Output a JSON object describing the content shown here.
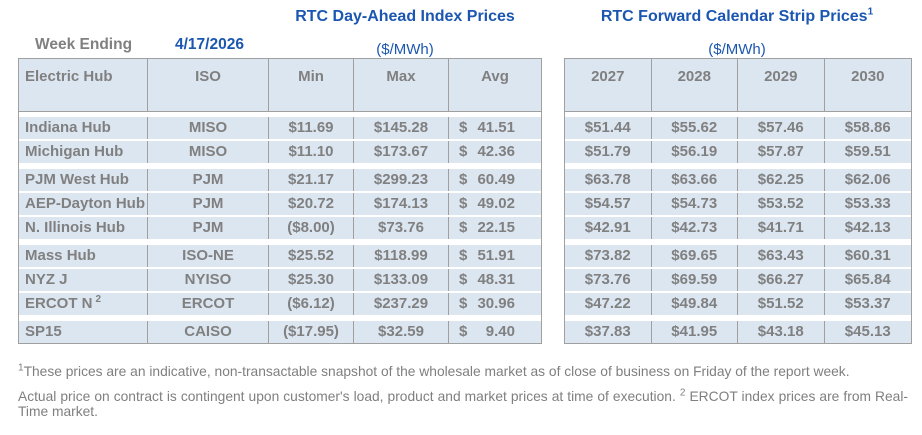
{
  "header": {
    "week_ending_label": "Week Ending",
    "week_ending_date": "4/17/2026",
    "left_title": "RTC Day-Ahead Index Prices",
    "right_title": "RTC Forward Calendar Strip Prices",
    "right_title_superscript": "1",
    "unit_label": "($/MWh)"
  },
  "colors": {
    "title_blue": "#1b57b1",
    "cell_background": "#dce6f1",
    "table_text_gray": "#808080",
    "border_gray": "#a0a0a0"
  },
  "day_ahead_table": {
    "columns": [
      "Electric Hub",
      "ISO",
      "Min",
      "Max",
      "Avg"
    ],
    "rows": [
      {
        "hub": "Indiana Hub",
        "hub_sup": "",
        "iso": "MISO",
        "min": "$11.69",
        "max": "$145.28",
        "avg_currency": "$",
        "avg": "41.51",
        "group_start": false
      },
      {
        "hub": "Michigan Hub",
        "hub_sup": "",
        "iso": "MISO",
        "min": "$11.10",
        "max": "$173.67",
        "avg_currency": "$",
        "avg": "42.36",
        "group_start": false
      },
      {
        "hub": "PJM West Hub",
        "hub_sup": "",
        "iso": "PJM",
        "min": "$21.17",
        "max": "$299.23",
        "avg_currency": "$",
        "avg": "60.49",
        "group_start": true
      },
      {
        "hub": "AEP-Dayton Hub",
        "hub_sup": "",
        "iso": "PJM",
        "min": "$20.72",
        "max": "$174.13",
        "avg_currency": "$",
        "avg": "49.02",
        "group_start": false
      },
      {
        "hub": "N. Illinois Hub",
        "hub_sup": "",
        "iso": "PJM",
        "min": "($8.00)",
        "max": "$73.76",
        "avg_currency": "$",
        "avg": "22.15",
        "group_start": false
      },
      {
        "hub": "Mass Hub",
        "hub_sup": "",
        "iso": "ISO-NE",
        "min": "$25.52",
        "max": "$118.99",
        "avg_currency": "$",
        "avg": "51.91",
        "group_start": true
      },
      {
        "hub": "NYZ J",
        "hub_sup": "",
        "iso": "NYISO",
        "min": "$25.30",
        "max": "$133.09",
        "avg_currency": "$",
        "avg": "48.31",
        "group_start": false
      },
      {
        "hub": "ERCOT N",
        "hub_sup": "2",
        "iso": "ERCOT",
        "min": "($6.12)",
        "max": "$237.29",
        "avg_currency": "$",
        "avg": "30.96",
        "group_start": false
      },
      {
        "hub": "SP15",
        "hub_sup": "",
        "iso": "CAISO",
        "min": "($17.95)",
        "max": "$32.59",
        "avg_currency": "$",
        "avg": "9.40",
        "group_start": true
      }
    ]
  },
  "forward_table": {
    "columns": [
      "2027",
      "2028",
      "2029",
      "2030"
    ],
    "rows": [
      {
        "values": [
          "$51.44",
          "$55.62",
          "$57.46",
          "$58.86"
        ],
        "group_start": false
      },
      {
        "values": [
          "$51.79",
          "$56.19",
          "$57.87",
          "$59.51"
        ],
        "group_start": false
      },
      {
        "values": [
          "$63.78",
          "$63.66",
          "$62.25",
          "$62.06"
        ],
        "group_start": true
      },
      {
        "values": [
          "$54.57",
          "$54.73",
          "$53.52",
          "$53.33"
        ],
        "group_start": false
      },
      {
        "values": [
          "$42.91",
          "$42.73",
          "$41.71",
          "$42.13"
        ],
        "group_start": false
      },
      {
        "values": [
          "$73.82",
          "$69.65",
          "$63.43",
          "$60.31"
        ],
        "group_start": true
      },
      {
        "values": [
          "$73.76",
          "$69.59",
          "$66.27",
          "$65.84"
        ],
        "group_start": false
      },
      {
        "values": [
          "$47.22",
          "$49.84",
          "$51.52",
          "$53.37"
        ],
        "group_start": false
      },
      {
        "values": [
          "$37.83",
          "$41.95",
          "$43.18",
          "$45.13"
        ],
        "group_start": true
      }
    ]
  },
  "footnotes": {
    "note1_sup": "1",
    "note1_text": "These prices are an indicative, non-transactable snapshot of the wholesale market as of close of business on Friday of the report week.",
    "note2_part1": "Actual price on contract is contingent upon customer's load, product and market prices at time of execution.",
    "note2_sup": "2",
    "note2_part2": "ERCOT index prices are from Real-Time market."
  }
}
